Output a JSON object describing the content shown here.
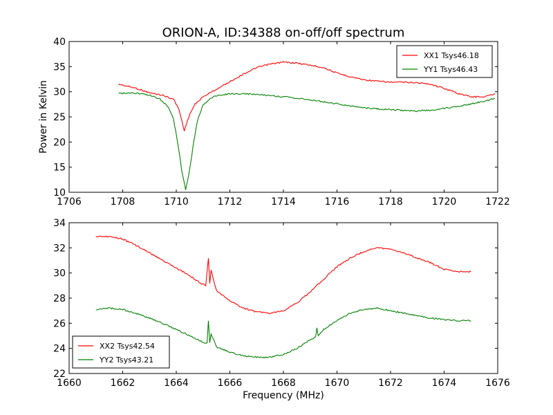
{
  "title": "ORION-A, ID:34388 on-off/off spectrum",
  "colors": {
    "red": "#ff0000",
    "green": "#008000",
    "frame": "#000000"
  },
  "chart_data": [
    {
      "type": "line",
      "panel": "top",
      "xlabel": "",
      "ylabel": "Power in Kelvin",
      "xlim": [
        1706,
        1722
      ],
      "ylim": [
        10,
        40
      ],
      "xticks": [
        1706,
        1708,
        1710,
        1712,
        1714,
        1716,
        1718,
        1720,
        1722
      ],
      "yticks": [
        10,
        15,
        20,
        25,
        30,
        35,
        40
      ],
      "legend_position": "top-right",
      "series": [
        {
          "name": "XX1 Tsys46.18",
          "color": "#ff0000",
          "x": [
            1707.85,
            1708.5,
            1709.0,
            1709.5,
            1709.9,
            1710.1,
            1710.3,
            1710.5,
            1710.7,
            1711.0,
            1711.5,
            1712.0,
            1712.5,
            1713.0,
            1713.5,
            1714.0,
            1714.5,
            1715.0,
            1715.5,
            1716.0,
            1716.5,
            1717.0,
            1717.5,
            1718.0,
            1718.5,
            1719.0,
            1719.5,
            1720.0,
            1720.5,
            1721.0,
            1721.5,
            1721.9
          ],
          "y": [
            31.5,
            30.7,
            29.8,
            29.3,
            28.5,
            26.5,
            22.3,
            25.5,
            27.5,
            29.0,
            30.5,
            32.0,
            33.5,
            34.8,
            35.5,
            35.9,
            35.7,
            35.3,
            34.8,
            33.7,
            33.0,
            32.4,
            32.1,
            31.9,
            31.9,
            31.8,
            31.5,
            30.7,
            29.7,
            29.0,
            29.0,
            29.6
          ]
        },
        {
          "name": "YY1 Tsys46.43",
          "color": "#008000",
          "x": [
            1707.85,
            1708.5,
            1709.0,
            1709.4,
            1709.7,
            1709.9,
            1710.05,
            1710.2,
            1710.35,
            1710.5,
            1710.65,
            1710.8,
            1711.0,
            1711.3,
            1711.6,
            1712.0,
            1713.0,
            1714.0,
            1715.0,
            1716.0,
            1717.0,
            1718.0,
            1718.5,
            1719.0,
            1719.5,
            1720.0,
            1720.5,
            1721.0,
            1721.5,
            1721.9
          ],
          "y": [
            29.7,
            29.7,
            29.3,
            28.5,
            27.0,
            24.5,
            20.0,
            14.5,
            10.5,
            14.5,
            20.0,
            24.5,
            27.3,
            28.8,
            29.3,
            29.6,
            29.5,
            29.0,
            28.4,
            27.6,
            26.8,
            26.4,
            26.3,
            26.2,
            26.3,
            26.7,
            27.1,
            27.6,
            28.1,
            28.7
          ]
        }
      ]
    },
    {
      "type": "line",
      "panel": "bottom",
      "xlabel": "Frequency (MHz)",
      "ylabel": "",
      "xlim": [
        1660,
        1676
      ],
      "ylim": [
        22,
        34
      ],
      "xticks": [
        1660,
        1662,
        1664,
        1666,
        1668,
        1670,
        1672,
        1674,
        1676
      ],
      "yticks": [
        22,
        24,
        26,
        28,
        30,
        32,
        34
      ],
      "legend_position": "bottom-left",
      "series": [
        {
          "name": "XX2 Tsys42.54",
          "color": "#ff0000",
          "x": [
            1661.0,
            1661.5,
            1662.0,
            1662.5,
            1663.0,
            1663.5,
            1664.0,
            1664.5,
            1664.9,
            1665.1,
            1665.2,
            1665.25,
            1665.3,
            1665.5,
            1666.0,
            1666.5,
            1667.0,
            1667.5,
            1668.0,
            1668.5,
            1669.0,
            1669.5,
            1670.0,
            1670.5,
            1671.0,
            1671.5,
            1672.0,
            1672.5,
            1673.0,
            1673.5,
            1674.0,
            1674.5,
            1675.0
          ],
          "y": [
            32.9,
            32.9,
            32.7,
            32.2,
            31.6,
            31.0,
            30.4,
            29.8,
            29.2,
            29.0,
            31.2,
            29.2,
            30.2,
            28.6,
            27.8,
            27.2,
            26.9,
            26.8,
            27.0,
            27.6,
            28.5,
            29.5,
            30.5,
            31.2,
            31.7,
            32.0,
            31.9,
            31.6,
            31.2,
            30.8,
            30.3,
            30.1,
            30.1
          ]
        },
        {
          "name": "YY2 Tsys43.21",
          "color": "#008000",
          "x": [
            1661.0,
            1661.5,
            1662.0,
            1662.5,
            1663.0,
            1663.5,
            1664.0,
            1664.5,
            1665.0,
            1665.15,
            1665.2,
            1665.25,
            1665.3,
            1665.5,
            1666.0,
            1666.5,
            1667.0,
            1667.5,
            1668.0,
            1668.5,
            1669.0,
            1669.2,
            1669.25,
            1669.3,
            1669.5,
            1670.0,
            1670.5,
            1671.0,
            1671.5,
            1672.0,
            1672.5,
            1673.0,
            1673.5,
            1674.0,
            1674.5,
            1675.0
          ],
          "y": [
            27.1,
            27.2,
            27.1,
            26.8,
            26.4,
            26.0,
            25.5,
            25.0,
            24.5,
            24.4,
            26.2,
            24.4,
            25.2,
            24.1,
            23.7,
            23.4,
            23.3,
            23.3,
            23.5,
            24.0,
            24.7,
            24.9,
            25.6,
            25.0,
            25.5,
            26.2,
            26.8,
            27.1,
            27.2,
            27.0,
            26.8,
            26.6,
            26.4,
            26.3,
            26.2,
            26.2
          ]
        }
      ]
    }
  ]
}
